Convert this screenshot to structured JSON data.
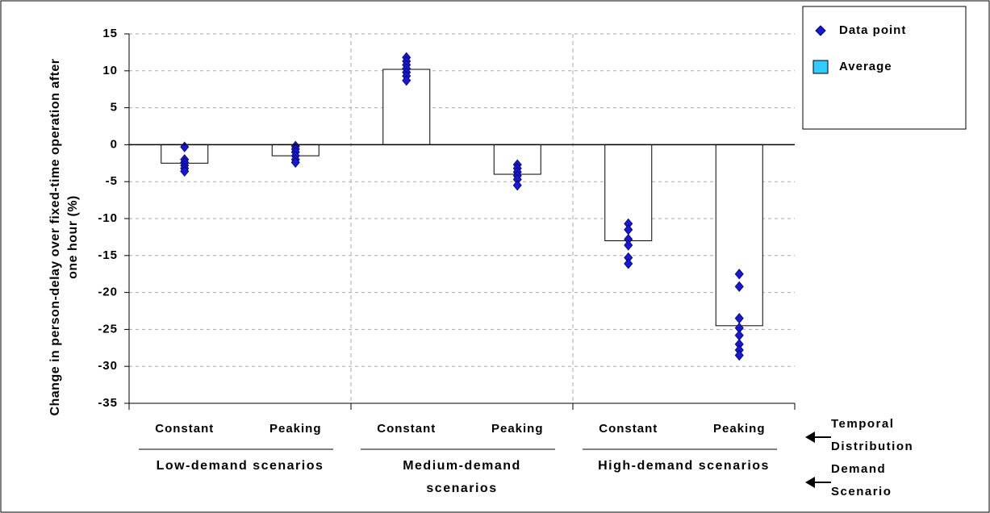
{
  "chart_data": {
    "type": "bar",
    "y_label": "Change in person-delay over fixed-time operation after one hour (%)",
    "categories": [
      "Constant",
      "Peaking",
      "Constant",
      "Peaking",
      "Constant",
      "Peaking"
    ],
    "groups": [
      "Low-demand scenarios",
      "Medium-demand scenarios",
      "High-demand scenarios"
    ],
    "annotations": [
      "Temporal Distribution",
      "Demand Scenario"
    ],
    "series": [
      {
        "name": "Data point",
        "type": "scatter",
        "color": "#1a1acc",
        "values": [
          [
            -0.3,
            -2.0,
            -2.4,
            -2.8,
            -3.2,
            -3.6
          ],
          [
            -0.2,
            -0.6,
            -1.0,
            -1.5,
            -2.0,
            -2.4
          ],
          [
            11.8,
            11.3,
            10.8,
            10.3,
            9.8,
            9.3,
            8.7
          ],
          [
            -2.7,
            -3.2,
            -3.7,
            -4.2,
            -4.7,
            -5.5
          ],
          [
            -10.7,
            -11.5,
            -12.8,
            -13.6,
            -15.3,
            -16.1
          ],
          [
            -17.5,
            -19.2,
            -23.5,
            -24.8,
            -25.8,
            -27.0,
            -27.8,
            -28.5
          ]
        ]
      },
      {
        "name": "Average",
        "type": "bar",
        "color": "#ffffff",
        "legend_color": "#33ccff",
        "values": [
          -2.5,
          -1.5,
          10.2,
          -4.0,
          -13.0,
          -24.5
        ]
      }
    ],
    "ylim": [
      -35,
      15
    ],
    "yticks": [
      -35,
      -30,
      -25,
      -20,
      -15,
      -10,
      -5,
      0,
      5,
      10,
      15
    ],
    "grid": true
  }
}
